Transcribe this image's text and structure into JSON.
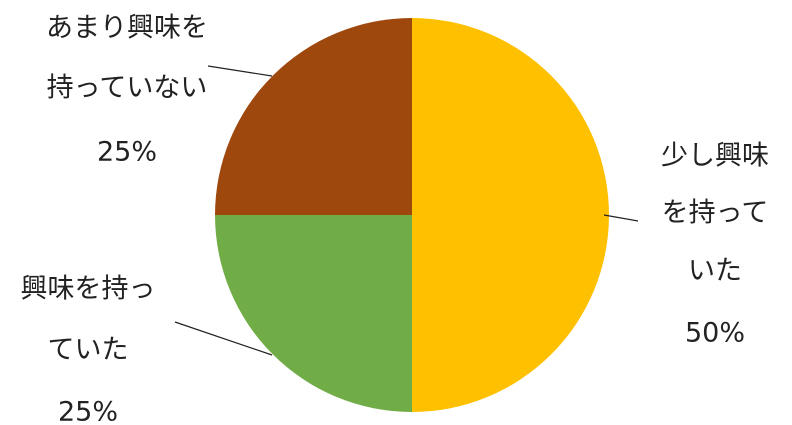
{
  "chart_data": {
    "type": "pie",
    "title": "",
    "slices": [
      {
        "label_lines": [
          "少し興味",
          "を持って",
          "いた"
        ],
        "value": 50,
        "value_label": "50%",
        "color": "#ffc000"
      },
      {
        "label_lines": [
          "興味を持っ",
          "ていた"
        ],
        "value": 25,
        "value_label": "25%",
        "color": "#70ad47"
      },
      {
        "label_lines": [
          "あまり興味を",
          "持っていない"
        ],
        "value": 25,
        "value_label": "25%",
        "color": "#9e480e"
      }
    ],
    "start_angle_deg": 0,
    "direction": "clockwise"
  }
}
